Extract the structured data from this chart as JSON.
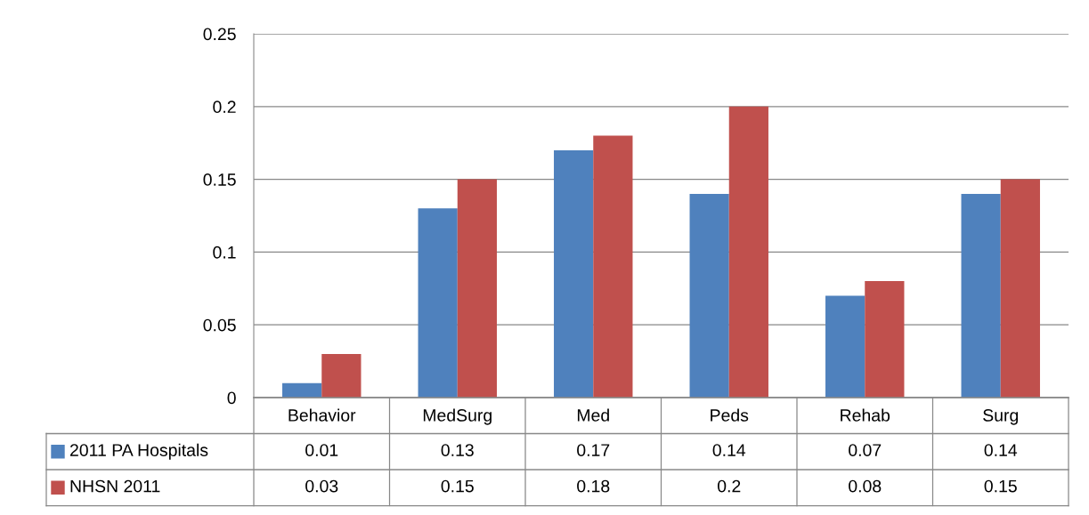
{
  "chart_data": {
    "type": "bar",
    "categories": [
      "Behavior",
      "MedSurg",
      "Med",
      "Peds",
      "Rehab",
      "Surg"
    ],
    "series": [
      {
        "name": "2011 PA Hospitals",
        "color": "#4f81bd",
        "values": [
          0.01,
          0.13,
          0.17,
          0.14,
          0.07,
          0.14
        ]
      },
      {
        "name": "NHSN 2011",
        "color": "#c0504d",
        "values": [
          0.03,
          0.15,
          0.18,
          0.2,
          0.08,
          0.15
        ]
      }
    ],
    "ylim": [
      0,
      0.25
    ],
    "yticks": [
      0,
      0.05,
      0.1,
      0.15,
      0.2,
      0.25
    ],
    "grid": "y",
    "data_labels": true,
    "legend": "bottom"
  }
}
